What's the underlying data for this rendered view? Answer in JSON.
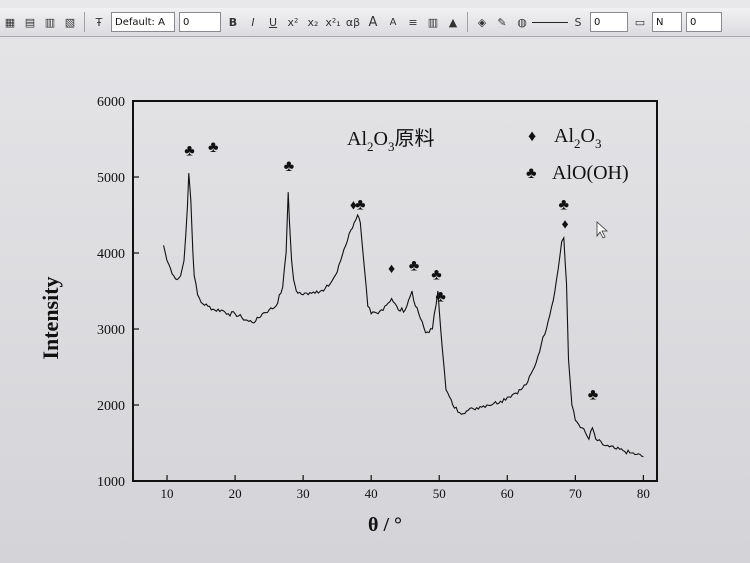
{
  "toolbar": {
    "font_name": "Default: A",
    "font_size": "0",
    "bold": "B",
    "italic": "I",
    "underline": "U",
    "superscript": "x²",
    "subscript": "x₂",
    "supsub": "x²₁",
    "greek": "αβ",
    "grow_font": "A",
    "shrink_font": "A",
    "line_size": "S",
    "value_field_1": "0",
    "value_field_2": "N",
    "value_field_3": "0"
  },
  "chart_data": {
    "type": "line",
    "xlabel": "θ / °",
    "ylabel": "Intensity",
    "xlim": [
      5,
      82
    ],
    "ylim": [
      1000,
      6000
    ],
    "xticks": [
      10,
      20,
      30,
      40,
      50,
      60,
      70,
      80
    ],
    "yticks": [
      1000,
      2000,
      3000,
      4000,
      5000,
      6000
    ],
    "annotation": {
      "prefix": "Al",
      "sub1": "2",
      "mid": "O",
      "sub2": "3",
      "suffix": "原料"
    },
    "legend": {
      "placement": "top-right",
      "items": [
        {
          "symbol": "♦",
          "prefix": "Al",
          "sub1": "2",
          "mid": "O",
          "sub2": "3"
        },
        {
          "symbol": "♣",
          "text": "AlO(OH)"
        }
      ]
    },
    "series": [
      {
        "x": [
          9.5,
          10,
          10.5,
          11,
          11.5,
          12,
          12.5,
          13,
          13.2,
          13.5,
          13.8,
          14,
          14.5,
          15,
          16,
          17,
          18,
          19,
          20,
          21,
          22,
          23,
          24,
          25,
          26,
          27,
          27.5,
          27.8,
          28,
          28.3,
          28.6,
          29,
          30,
          31,
          32,
          33,
          34,
          35,
          36,
          37,
          37.5,
          38,
          38.4,
          38.7,
          39,
          39.5,
          40,
          41,
          42,
          43,
          44,
          45,
          46,
          46.5,
          47,
          48,
          49,
          49.8,
          50.5,
          51,
          52,
          53,
          54,
          55,
          56,
          57,
          58,
          59,
          60,
          61,
          62,
          63,
          64,
          65,
          66,
          67,
          67.5,
          68,
          68.3,
          68.7,
          69,
          69.5,
          70,
          71,
          72,
          72.5,
          73,
          74,
          75,
          76,
          77,
          78,
          79,
          80
        ],
        "y": [
          4100,
          3900,
          3800,
          3700,
          3650,
          3700,
          3900,
          4600,
          5050,
          4700,
          4000,
          3700,
          3450,
          3350,
          3300,
          3250,
          3250,
          3200,
          3200,
          3150,
          3100,
          3100,
          3200,
          3250,
          3300,
          3550,
          4000,
          4800,
          4400,
          3900,
          3650,
          3500,
          3450,
          3480,
          3500,
          3500,
          3600,
          3750,
          4050,
          4300,
          4400,
          4500,
          4400,
          4100,
          3800,
          3300,
          3200,
          3200,
          3300,
          3400,
          3250,
          3250,
          3500,
          3300,
          3200,
          2950,
          3000,
          3500,
          2700,
          2200,
          2000,
          1900,
          1920,
          1950,
          1980,
          2000,
          2020,
          2050,
          2100,
          2150,
          2200,
          2300,
          2500,
          2800,
          3100,
          3500,
          3800,
          4150,
          4200,
          3600,
          2600,
          2000,
          1800,
          1700,
          1550,
          1700,
          1550,
          1480,
          1450,
          1420,
          1400,
          1370,
          1350,
          1320
        ]
      }
    ],
    "peak_markers": [
      {
        "x": 13.3,
        "y": 5280,
        "symbol": "♣"
      },
      {
        "x": 16.8,
        "y": 5330,
        "symbol": "♣"
      },
      {
        "x": 27.9,
        "y": 5080,
        "symbol": "♣"
      },
      {
        "x": 37.4,
        "y": 4570,
        "symbol": "♦"
      },
      {
        "x": 38.4,
        "y": 4570,
        "symbol": "♣"
      },
      {
        "x": 43.0,
        "y": 3740,
        "symbol": "♦"
      },
      {
        "x": 46.3,
        "y": 3770,
        "symbol": "♣"
      },
      {
        "x": 49.6,
        "y": 3650,
        "symbol": "♣"
      },
      {
        "x": 50.2,
        "y": 3360,
        "symbol": "♣"
      },
      {
        "x": 68.3,
        "y": 4570,
        "symbol": "♣"
      },
      {
        "x": 68.5,
        "y": 4320,
        "symbol": "♦"
      },
      {
        "x": 72.6,
        "y": 2070,
        "symbol": "♣"
      }
    ]
  }
}
